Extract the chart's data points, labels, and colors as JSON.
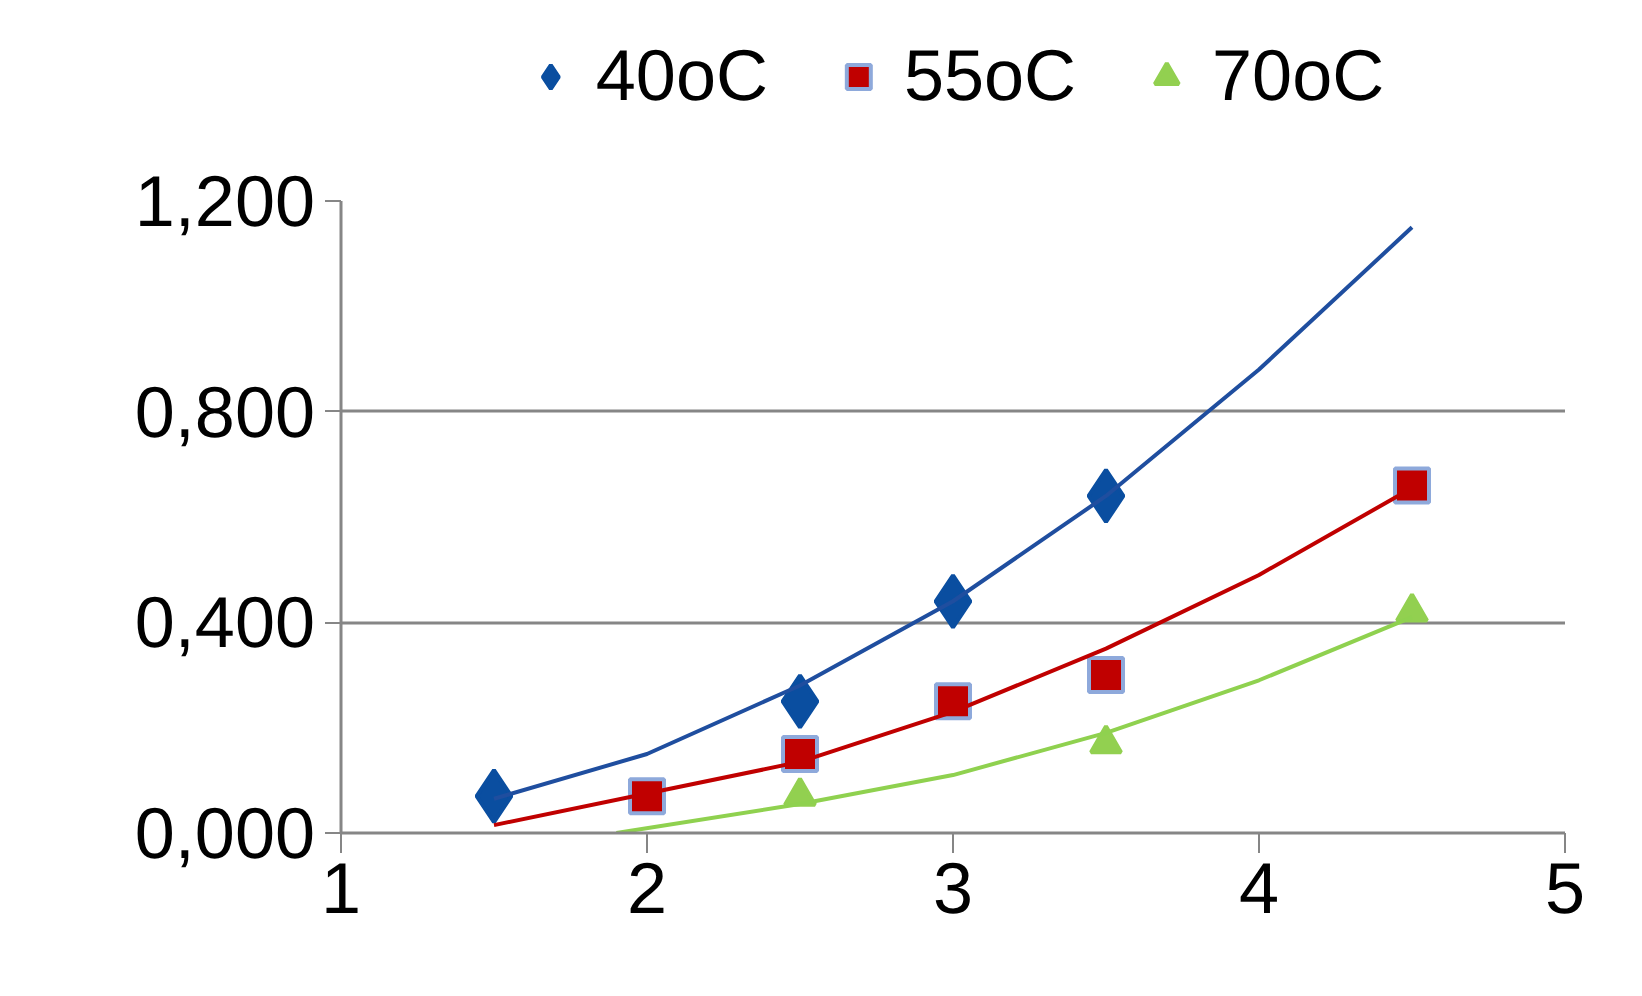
{
  "chart_data": {
    "type": "scatter",
    "xlim": [
      1,
      5
    ],
    "ylim": [
      0,
      1.2
    ],
    "xticks": [
      1,
      2,
      3,
      4,
      5
    ],
    "yticks": [
      {
        "value": 0,
        "label": "0,000"
      },
      {
        "value": 0.4,
        "label": "0,400"
      },
      {
        "value": 0.8,
        "label": "0,800"
      },
      {
        "value": 1.2,
        "label": "1,200"
      }
    ],
    "grid": "y",
    "legend": "top",
    "series": [
      {
        "name": "40oC",
        "color": "#0a4ea0",
        "marker": "diamond",
        "x": [
          1.5,
          2.5,
          3,
          3.5
        ],
        "values": [
          0.07,
          0.25,
          0.44,
          0.64
        ]
      },
      {
        "name": "55oC",
        "color": "#c00000",
        "marker": "square",
        "x": [
          2,
          2.5,
          3,
          3.5,
          4.5
        ],
        "values": [
          0.07,
          0.15,
          0.25,
          0.3,
          0.66
        ]
      },
      {
        "name": "70oC",
        "color": "#92d050",
        "marker": "triangle",
        "x": [
          2.5,
          3.5,
          4.5
        ],
        "values": [
          0.07,
          0.17,
          0.42
        ]
      },
      {
        "type": "line",
        "color": "#1f4e9f",
        "x": [
          1.5,
          2,
          2.5,
          3,
          3.5,
          4,
          4.5
        ],
        "values": [
          0.065,
          0.15,
          0.28,
          0.44,
          0.64,
          0.88,
          1.15
        ]
      },
      {
        "type": "line",
        "color": "#c00000",
        "x": [
          1.5,
          2,
          2.5,
          3,
          3.5,
          4,
          4.5
        ],
        "values": [
          0.015,
          0.075,
          0.135,
          0.23,
          0.35,
          0.49,
          0.655
        ]
      },
      {
        "type": "line",
        "color": "#8fd14f",
        "x": [
          1.9,
          2.5,
          3,
          3.5,
          4,
          4.5
        ],
        "values": [
          0,
          0.055,
          0.11,
          0.19,
          0.29,
          0.41
        ]
      }
    ]
  }
}
